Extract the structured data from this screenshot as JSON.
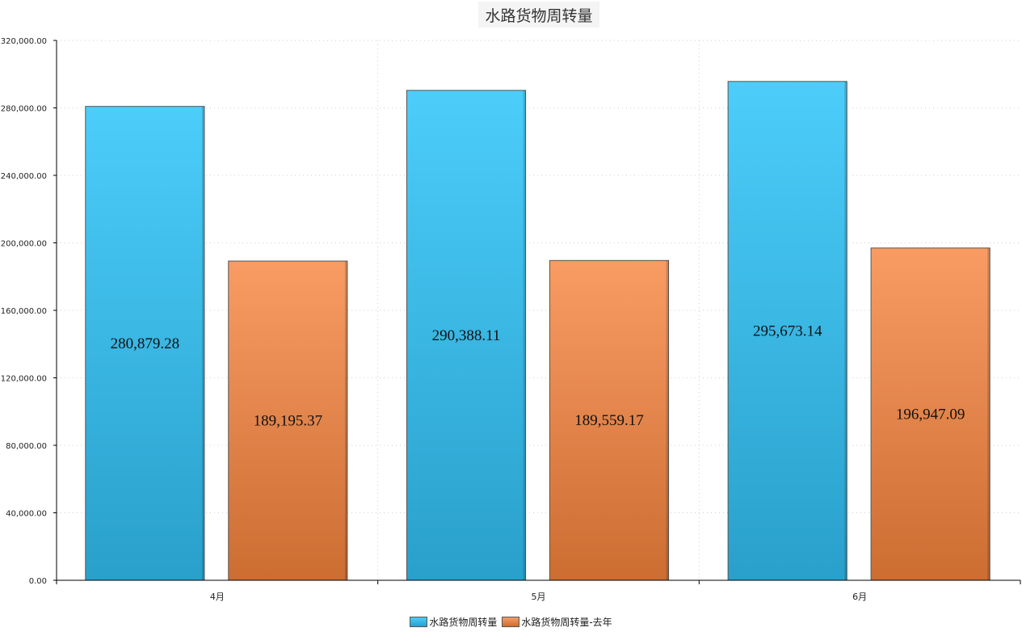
{
  "chart_data": {
    "type": "bar",
    "title": "水路货物周转量",
    "categories": [
      "4月",
      "5月",
      "6月"
    ],
    "series": [
      {
        "name": "水路货物周转量",
        "values": [
          280879.28,
          290388.11,
          295673.14
        ],
        "labels": [
          "280,879.28",
          "290,388.11",
          "295,673.14"
        ],
        "color_top": "#4ccdfa",
        "color_bottom": "#29a0cb"
      },
      {
        "name": "水路货物周转量-去年",
        "values": [
          189195.37,
          189559.17,
          196947.09
        ],
        "labels": [
          "189,195.37",
          "189,559.17",
          "196,947.09"
        ],
        "color_top": "#f89c64",
        "color_bottom": "#cc6d32"
      }
    ],
    "yticks": [
      "0.00",
      "40,000.00",
      "80,000.00",
      "120,000.00",
      "160,000.00",
      "200,000.00",
      "240,000.00",
      "280,000.00",
      "320,000.00"
    ],
    "ylim": [
      0,
      320000
    ],
    "grid": true,
    "legend_position": "bottom-center"
  }
}
